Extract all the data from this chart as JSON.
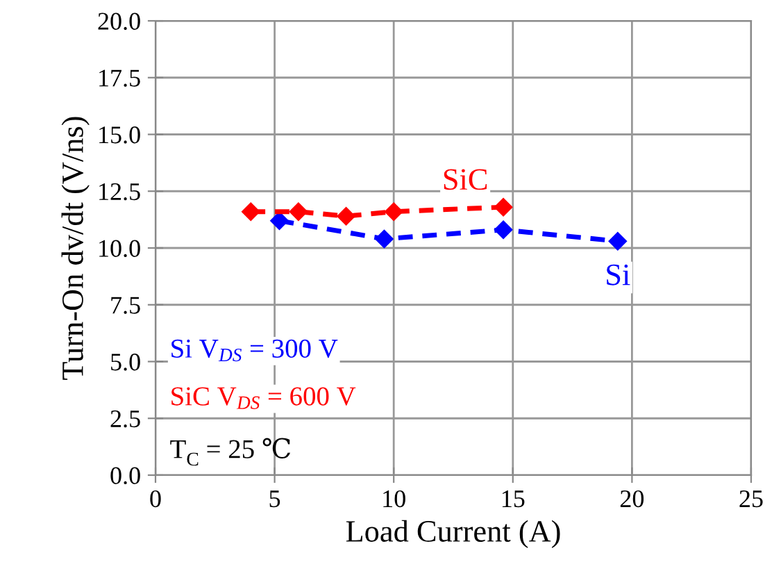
{
  "chart_data": {
    "type": "line",
    "xlabel": "Load Current (A)",
    "ylabel": "Turn-On dv/dt (V/ns)",
    "xlim": [
      0,
      25
    ],
    "xticks": [
      0,
      5,
      10,
      15,
      20,
      25
    ],
    "ylim": [
      0,
      20
    ],
    "yticks": [
      {
        "value": 0,
        "label": "0.0"
      },
      {
        "value": 2.5,
        "label": "2.5"
      },
      {
        "value": 5,
        "label": "5.0"
      },
      {
        "value": 7.5,
        "label": "7.5"
      },
      {
        "value": 10,
        "label": "10.0"
      },
      {
        "value": 12.5,
        "label": "12.5"
      },
      {
        "value": 15,
        "label": "15.0"
      },
      {
        "value": 17.5,
        "label": "17.5"
      },
      {
        "value": 20,
        "label": "20.0"
      }
    ],
    "grid": true,
    "legend": false,
    "marker": "diamond",
    "line_style": "dashed",
    "series": [
      {
        "name": "Si",
        "color": "#0000ff",
        "x": [
          5.2,
          9.6,
          14.6,
          19.4
        ],
        "values": [
          11.2,
          10.4,
          10.8,
          10.3
        ]
      },
      {
        "name": "SiC",
        "color": "#ff0000",
        "x": [
          4,
          6,
          8,
          10,
          14.6
        ],
        "values": [
          11.6,
          11.6,
          11.4,
          11.6,
          11.8
        ]
      }
    ],
    "annotations": [
      "Si V$_{DS}$ = 300 V",
      "SiC V$_{DS}$ = 600 V",
      "T$_{C}$ = 25 ℃"
    ]
  }
}
